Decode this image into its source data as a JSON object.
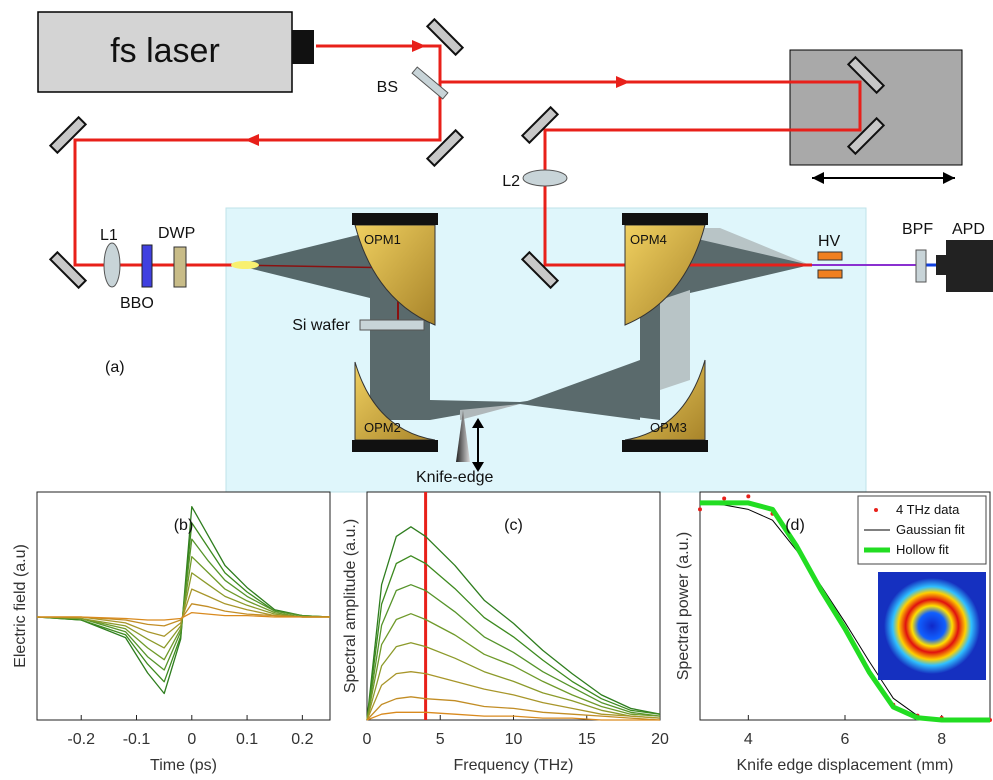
{
  "diagram": {
    "laser": "fs laser",
    "bs": "BS",
    "l2": "L2",
    "l1": "L1",
    "dwp": "DWP",
    "bbo": "BBO",
    "panel": "(a)",
    "opm1": "OPM1",
    "opm2": "OPM2",
    "opm3": "OPM3",
    "opm4": "OPM4",
    "si": "Si wafer",
    "knife": "Knife-edge",
    "hv": "HV",
    "bpf": "BPF",
    "apd": "APD"
  },
  "chart_data": [
    {
      "type": "line",
      "annotation": "(b)",
      "x_label": "Time (ps)",
      "y_label": "Electric field (a.u)",
      "x": [
        -0.28,
        -0.2,
        -0.12,
        -0.08,
        -0.05,
        -0.02,
        0,
        0.03,
        0.06,
        0.1,
        0.15,
        0.2,
        0.25
      ],
      "xlim": [
        -0.28,
        0.25
      ],
      "xticks": [
        -0.2,
        -0.1,
        0,
        0.1,
        0.2
      ],
      "ylim": [
        -0.7,
        0.85
      ],
      "series": [
        {
          "color": "#2e7d1e",
          "values": [
            0,
            -0.02,
            -0.14,
            -0.38,
            -0.52,
            -0.15,
            0.75,
            0.55,
            0.35,
            0.2,
            0.05,
            0.01,
            0
          ]
        },
        {
          "color": "#3d8a1f",
          "values": [
            0,
            -0.02,
            -0.12,
            -0.32,
            -0.44,
            -0.13,
            0.64,
            0.47,
            0.3,
            0.17,
            0.04,
            0.01,
            0
          ]
        },
        {
          "color": "#56942a",
          "values": [
            0,
            -0.01,
            -0.1,
            -0.27,
            -0.36,
            -0.1,
            0.53,
            0.38,
            0.25,
            0.14,
            0.04,
            0.01,
            0
          ]
        },
        {
          "color": "#6f9a2a",
          "values": [
            0,
            -0.01,
            -0.08,
            -0.21,
            -0.29,
            -0.08,
            0.41,
            0.3,
            0.19,
            0.11,
            0.03,
            0,
            0
          ]
        },
        {
          "color": "#8c9a2a",
          "values": [
            0,
            -0.01,
            -0.06,
            -0.15,
            -0.21,
            -0.06,
            0.3,
            0.22,
            0.14,
            0.08,
            0.02,
            0,
            0
          ]
        },
        {
          "color": "#a8962a",
          "values": [
            0,
            0,
            -0.04,
            -0.1,
            -0.13,
            -0.04,
            0.19,
            0.14,
            0.09,
            0.05,
            0.01,
            0,
            0
          ]
        },
        {
          "color": "#c28d25",
          "values": [
            0,
            0,
            -0.02,
            -0.05,
            -0.06,
            -0.02,
            0.09,
            0.07,
            0.04,
            0.02,
            0.01,
            0,
            0
          ]
        },
        {
          "color": "#d98a1e",
          "values": [
            0,
            0,
            -0.01,
            -0.02,
            -0.02,
            -0.01,
            0.03,
            0.02,
            0.01,
            0.01,
            0,
            0,
            0
          ]
        }
      ]
    },
    {
      "type": "line",
      "annotation": "(c)",
      "x_label": "Frequency (THz)",
      "y_label": "Spectral amplitude (a.u.)",
      "x": [
        0,
        1,
        2,
        3,
        4,
        6,
        8,
        10,
        12,
        14,
        16,
        18,
        20
      ],
      "xlim": [
        0,
        20
      ],
      "xticks": [
        0,
        5,
        10,
        15,
        20
      ],
      "ylim": [
        0,
        1.18
      ],
      "vline": {
        "x": 4,
        "color": "#e8201a"
      },
      "series": [
        {
          "color": "#2e7d1e",
          "values": [
            0,
            0.7,
            0.95,
            1.0,
            0.95,
            0.8,
            0.62,
            0.5,
            0.36,
            0.24,
            0.13,
            0.06,
            0.03
          ]
        },
        {
          "color": "#3d8a1f",
          "values": [
            0,
            0.6,
            0.81,
            0.85,
            0.81,
            0.68,
            0.53,
            0.43,
            0.31,
            0.2,
            0.11,
            0.05,
            0.03
          ]
        },
        {
          "color": "#56942a",
          "values": [
            0,
            0.49,
            0.67,
            0.7,
            0.67,
            0.56,
            0.43,
            0.35,
            0.25,
            0.17,
            0.09,
            0.04,
            0.02
          ]
        },
        {
          "color": "#6f9a2a",
          "values": [
            0,
            0.39,
            0.52,
            0.55,
            0.52,
            0.44,
            0.34,
            0.28,
            0.2,
            0.13,
            0.07,
            0.03,
            0.02
          ]
        },
        {
          "color": "#8c9a2a",
          "values": [
            0,
            0.28,
            0.38,
            0.4,
            0.38,
            0.32,
            0.25,
            0.2,
            0.14,
            0.1,
            0.05,
            0.02,
            0.01
          ]
        },
        {
          "color": "#a8962a",
          "values": [
            0,
            0.18,
            0.24,
            0.25,
            0.24,
            0.2,
            0.16,
            0.13,
            0.09,
            0.06,
            0.03,
            0.02,
            0.01
          ]
        },
        {
          "color": "#c28d25",
          "values": [
            0,
            0.08,
            0.11,
            0.12,
            0.11,
            0.1,
            0.07,
            0.06,
            0.04,
            0.03,
            0.02,
            0.01,
            0
          ]
        },
        {
          "color": "#d98a1e",
          "values": [
            0,
            0.03,
            0.04,
            0.04,
            0.04,
            0.03,
            0.02,
            0.02,
            0.01,
            0.01,
            0,
            0,
            0
          ]
        }
      ]
    },
    {
      "type": "line",
      "annotation": "(d)",
      "x_label": "Knife edge displacement (mm)",
      "y_label": "Spectral power (a.u.)",
      "x": [
        3,
        3.5,
        4,
        4.5,
        5,
        5.5,
        6,
        6.5,
        7,
        7.5,
        8,
        8.5,
        9
      ],
      "xlim": [
        3,
        9
      ],
      "xticks": [
        4,
        6,
        8
      ],
      "ylim": [
        0,
        1.05
      ],
      "legend": "upper right",
      "series": [
        {
          "name": "4 THz data",
          "color": "#e8201a",
          "mode": "markers",
          "values": [
            0.97,
            1.02,
            1.03,
            0.95,
            0.8,
            0.6,
            0.42,
            0.22,
            0.07,
            0.02,
            0.01,
            0,
            0
          ]
        },
        {
          "name": "Gaussian fit",
          "color": "#000000",
          "line_width": 1,
          "values": [
            1,
            0.99,
            0.97,
            0.92,
            0.78,
            0.62,
            0.45,
            0.27,
            0.1,
            0.02,
            0,
            0,
            0
          ]
        },
        {
          "name": "Hollow fit",
          "color": "#22dd22",
          "line_width": 5,
          "values": [
            1,
            1,
            1,
            0.97,
            0.8,
            0.6,
            0.42,
            0.22,
            0.06,
            0.01,
            0,
            0,
            0
          ]
        }
      ]
    }
  ]
}
